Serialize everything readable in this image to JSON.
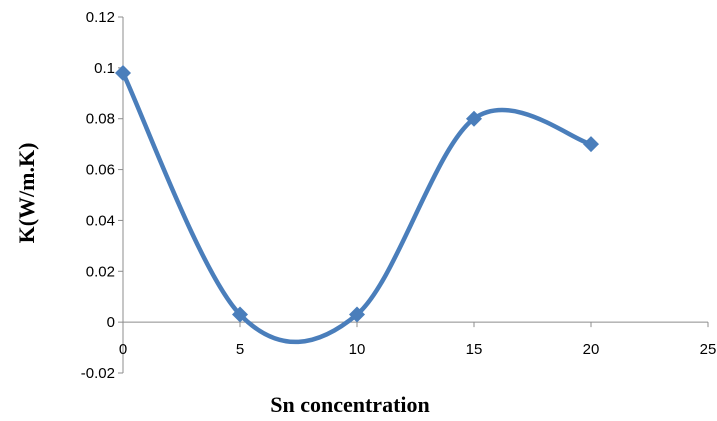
{
  "chart_data": {
    "type": "scatter",
    "title": "",
    "xlabel": "Sn concentration",
    "ylabel": "K(W/m.K)",
    "xlim": [
      0,
      25
    ],
    "ylim": [
      -0.02,
      0.12
    ],
    "x_ticks": [
      "0",
      "5",
      "10",
      "15",
      "20",
      "25"
    ],
    "y_ticks": [
      "-0.02",
      "0",
      "0.02",
      "0.04",
      "0.06",
      "0.08",
      "0.1",
      "0.12"
    ],
    "grid": false,
    "legend": "none",
    "smooth_line": true,
    "series": [
      {
        "color": "#4a7ebb",
        "marker": "diamond",
        "points": [
          {
            "x": 0,
            "y": 0.098
          },
          {
            "x": 5,
            "y": 0.003
          },
          {
            "x": 10,
            "y": 0.003
          },
          {
            "x": 15,
            "y": 0.08
          },
          {
            "x": 20,
            "y": 0.07
          }
        ]
      }
    ]
  }
}
